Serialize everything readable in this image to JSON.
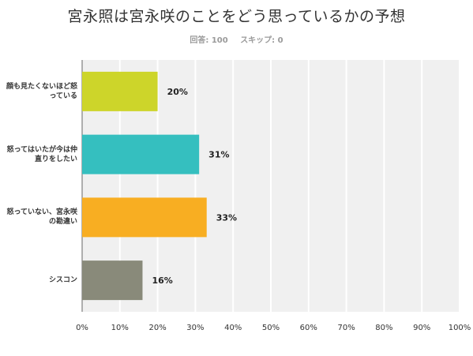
{
  "title": "宮永照は宮永咲のことをどう思っているかの予想",
  "stats": {
    "answered": "回答: 100",
    "skipped": "スキップ: 0"
  },
  "chart_data": {
    "type": "bar",
    "orientation": "horizontal",
    "categories": [
      "顔も見たくないほど怒っている",
      "怒ってはいたが今は仲直りをしたい",
      "怒っていない、宮永咲の勘違い",
      "シスコン"
    ],
    "values": [
      20,
      31,
      33,
      16
    ],
    "value_labels": [
      "20%",
      "31%",
      "33%",
      "16%"
    ],
    "colors": [
      "#cdd52a",
      "#35bfbf",
      "#f8ae22",
      "#898a7a"
    ],
    "xlim": [
      0,
      100
    ],
    "xticks": [
      "0%",
      "10%",
      "20%",
      "30%",
      "40%",
      "50%",
      "60%",
      "70%",
      "80%",
      "90%",
      "100%"
    ],
    "grid": true,
    "background": "#f0f0f0"
  }
}
